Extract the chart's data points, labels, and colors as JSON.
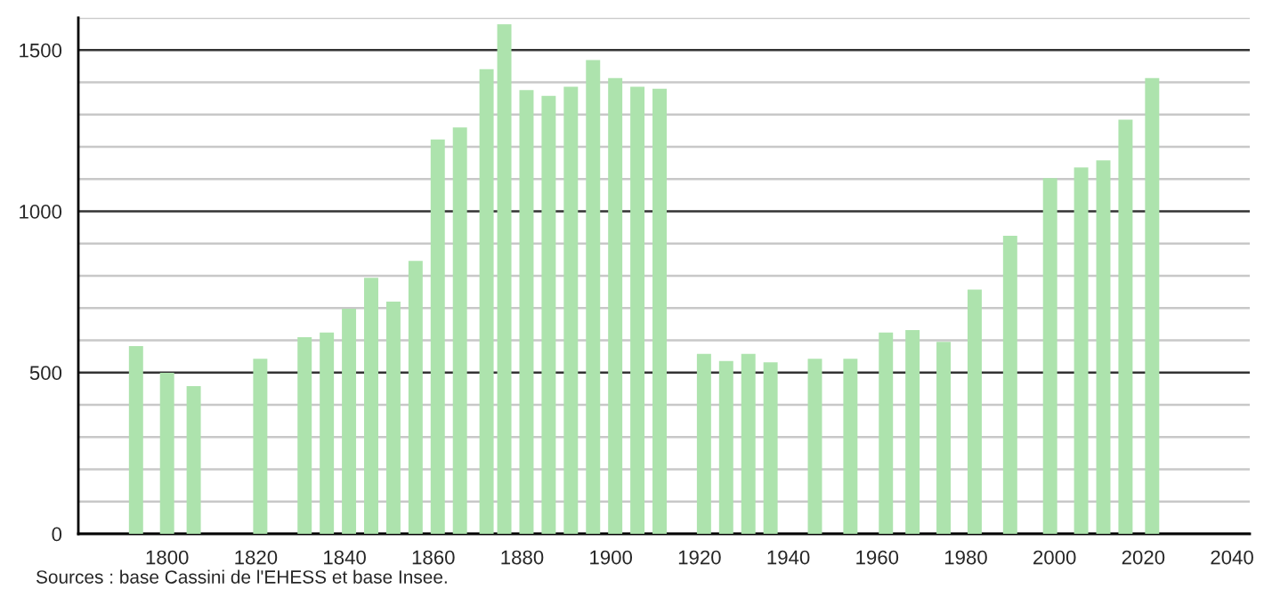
{
  "chart_data": {
    "type": "bar",
    "color": "#ade3ad",
    "x": [
      1793,
      1800,
      1806,
      1821,
      1831,
      1836,
      1841,
      1846,
      1851,
      1856,
      1861,
      1866,
      1872,
      1876,
      1881,
      1886,
      1891,
      1896,
      1901,
      1906,
      1911,
      1921,
      1926,
      1931,
      1936,
      1946,
      1954,
      1962,
      1968,
      1975,
      1982,
      1990,
      1999,
      2006,
      2011,
      2016,
      2022
    ],
    "values": [
      582,
      499,
      458,
      543,
      610,
      624,
      698,
      794,
      720,
      846,
      1223,
      1260,
      1441,
      1580,
      1376,
      1358,
      1386,
      1469,
      1413,
      1386,
      1380,
      558,
      536,
      558,
      532,
      543,
      543,
      624,
      632,
      595,
      757,
      924,
      1103,
      1136,
      1158,
      1284,
      1413
    ],
    "xlim": [
      1780,
      2044
    ],
    "xticks": [
      1800,
      1820,
      1840,
      1860,
      1880,
      1900,
      1920,
      1940,
      1960,
      1980,
      2000,
      2020,
      2040
    ],
    "ylim": [
      0,
      1600
    ],
    "yticks": [
      0,
      {
        "value": 100,
        "label": null
      },
      {
        "value": 200,
        "label": null
      },
      {
        "value": 300,
        "label": null
      },
      {
        "value": 400,
        "label": null
      },
      500,
      {
        "value": 600,
        "label": null
      },
      {
        "value": 700,
        "label": null
      },
      {
        "value": 800,
        "label": null
      },
      {
        "value": 900,
        "label": null
      },
      1000,
      {
        "value": 1100,
        "label": null
      },
      {
        "value": 1200,
        "label": null
      },
      {
        "value": 1300,
        "label": null
      },
      {
        "value": 1400,
        "label": null
      },
      1500,
      {
        "value": 1600,
        "label": null
      }
    ],
    "grid": "y",
    "annotations": [
      "Sources : base Cassini de l'EHESS et base Insee."
    ]
  }
}
